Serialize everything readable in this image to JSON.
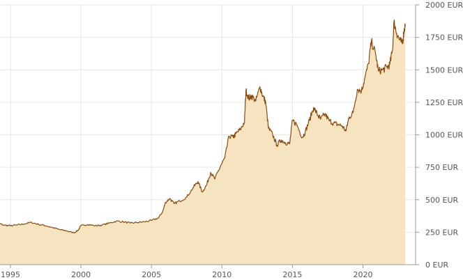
{
  "chart_data": {
    "type": "area",
    "title": "",
    "xlabel": "",
    "ylabel": "",
    "x_range": [
      1993.6,
      2023.0
    ],
    "ylim": [
      0,
      2000
    ],
    "grid": true,
    "y_axis_side": "right",
    "x_ticks": [
      "1995",
      "2000",
      "2005",
      "2010",
      "2015",
      "2020"
    ],
    "y_ticks": [
      "0 EUR",
      "250 EUR",
      "500 EUR",
      "750 EUR",
      "1000 EUR",
      "1250 EUR",
      "1500 EUR",
      "1750 EUR",
      "2000 EUR"
    ],
    "series": [
      {
        "points": [
          [
            1993.6,
            330
          ],
          [
            1994.0,
            325
          ],
          [
            1994.5,
            305
          ],
          [
            1995.0,
            300
          ],
          [
            1995.5,
            305
          ],
          [
            1996.0,
            315
          ],
          [
            1996.5,
            325
          ],
          [
            1997.0,
            310
          ],
          [
            1997.5,
            300
          ],
          [
            1998.0,
            285
          ],
          [
            1998.5,
            270
          ],
          [
            1999.0,
            260
          ],
          [
            1999.5,
            245
          ],
          [
            1999.8,
            265
          ],
          [
            2000.0,
            300
          ],
          [
            2000.5,
            310
          ],
          [
            2001.0,
            300
          ],
          [
            2001.5,
            305
          ],
          [
            2002.0,
            320
          ],
          [
            2002.5,
            335
          ],
          [
            2003.0,
            330
          ],
          [
            2003.5,
            320
          ],
          [
            2004.0,
            325
          ],
          [
            2004.5,
            330
          ],
          [
            2005.0,
            340
          ],
          [
            2005.5,
            360
          ],
          [
            2005.8,
            410
          ],
          [
            2006.0,
            480
          ],
          [
            2006.3,
            510
          ],
          [
            2006.6,
            470
          ],
          [
            2007.0,
            490
          ],
          [
            2007.5,
            520
          ],
          [
            2008.0,
            600
          ],
          [
            2008.3,
            640
          ],
          [
            2008.6,
            560
          ],
          [
            2008.9,
            610
          ],
          [
            2009.2,
            710
          ],
          [
            2009.5,
            660
          ],
          [
            2009.9,
            760
          ],
          [
            2010.2,
            820
          ],
          [
            2010.5,
            990
          ],
          [
            2010.8,
            980
          ],
          [
            2011.0,
            1010
          ],
          [
            2011.3,
            1040
          ],
          [
            2011.6,
            1100
          ],
          [
            2011.7,
            1340
          ],
          [
            2011.9,
            1280
          ],
          [
            2012.1,
            1300
          ],
          [
            2012.4,
            1260
          ],
          [
            2012.7,
            1370
          ],
          [
            2012.9,
            1300
          ],
          [
            2013.1,
            1250
          ],
          [
            2013.3,
            1050
          ],
          [
            2013.6,
            1000
          ],
          [
            2013.9,
            920
          ],
          [
            2014.2,
            960
          ],
          [
            2014.5,
            940
          ],
          [
            2014.8,
            930
          ],
          [
            2015.0,
            1110
          ],
          [
            2015.3,
            1080
          ],
          [
            2015.7,
            980
          ],
          [
            2015.9,
            1020
          ],
          [
            2016.2,
            1110
          ],
          [
            2016.5,
            1210
          ],
          [
            2016.8,
            1150
          ],
          [
            2017.0,
            1120
          ],
          [
            2017.3,
            1160
          ],
          [
            2017.6,
            1110
          ],
          [
            2017.9,
            1090
          ],
          [
            2018.2,
            1080
          ],
          [
            2018.5,
            1070
          ],
          [
            2018.8,
            1030
          ],
          [
            2019.0,
            1130
          ],
          [
            2019.3,
            1170
          ],
          [
            2019.6,
            1350
          ],
          [
            2019.9,
            1340
          ],
          [
            2020.1,
            1420
          ],
          [
            2020.4,
            1550
          ],
          [
            2020.6,
            1720
          ],
          [
            2020.9,
            1620
          ],
          [
            2021.1,
            1490
          ],
          [
            2021.4,
            1500
          ],
          [
            2021.7,
            1520
          ],
          [
            2021.9,
            1540
          ],
          [
            2022.1,
            1650
          ],
          [
            2022.2,
            1870
          ],
          [
            2022.4,
            1780
          ],
          [
            2022.6,
            1730
          ],
          [
            2022.8,
            1700
          ],
          [
            2022.9,
            1790
          ],
          [
            2023.0,
            1850
          ]
        ]
      }
    ],
    "colors": {
      "line": "#8c4a0c",
      "fill": "#f5e4bf",
      "grid": "#e6e6e6",
      "axis": "#999999",
      "tick_text": "#555555"
    }
  }
}
